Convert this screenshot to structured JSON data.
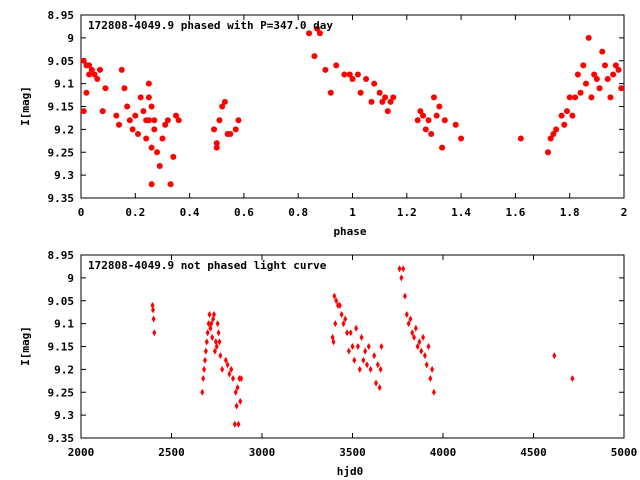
{
  "chart_data": [
    {
      "type": "scatter",
      "title": "172808-4049.9 phased with P=347.0 day",
      "xlabel": "phase",
      "ylabel": "I[mag]",
      "xlim": [
        0,
        2
      ],
      "ylim": [
        9.35,
        8.95
      ],
      "y_inverted": true,
      "xticks": [
        0,
        0.2,
        0.4,
        0.6,
        0.8,
        1,
        1.2,
        1.4,
        1.6,
        1.8,
        2
      ],
      "xtick_labels": [
        "0",
        "0.2",
        "0.4",
        "0.6",
        "0.8",
        "1",
        "1.2",
        "1.4",
        "1.6",
        "1.8",
        "2"
      ],
      "yticks": [
        8.95,
        9,
        9.05,
        9.1,
        9.15,
        9.2,
        9.25,
        9.3,
        9.35
      ],
      "ytick_labels": [
        "8.95",
        "9",
        "9.05",
        "9.1",
        "9.15",
        "9.2",
        "9.25",
        "9.3",
        "9.35"
      ],
      "grid": false,
      "series": [
        {
          "color": "#ff0000",
          "marker": "filled-circle",
          "x": [
            0.01,
            0.01,
            0.02,
            0.02,
            0.03,
            0.03,
            0.04,
            0.05,
            0.06,
            0.07,
            0.08,
            0.09,
            0.13,
            0.14,
            0.15,
            0.16,
            0.17,
            0.18,
            0.19,
            0.2,
            0.21,
            0.22,
            0.23,
            0.24,
            0.24,
            0.25,
            0.25,
            0.25,
            0.26,
            0.26,
            0.26,
            0.27,
            0.27,
            0.28,
            0.29,
            0.3,
            0.31,
            0.32,
            0.33,
            0.34,
            0.35,
            0.36,
            0.49,
            0.5,
            0.5,
            0.51,
            0.52,
            0.53,
            0.54,
            0.55,
            0.57,
            0.58,
            0.84,
            0.86,
            0.87,
            0.88,
            0.9,
            0.92,
            0.94,
            0.97,
            0.99,
            1.0,
            1.02,
            1.03,
            1.05,
            1.07,
            1.08,
            1.1,
            1.11,
            1.12,
            1.13,
            1.14,
            1.15,
            1.24,
            1.25,
            1.26,
            1.27,
            1.28,
            1.29,
            1.3,
            1.31,
            1.32,
            1.33,
            1.34,
            1.38,
            1.4,
            1.62,
            1.72,
            1.73,
            1.74,
            1.75,
            1.77,
            1.78,
            1.79,
            1.8,
            1.81,
            1.82,
            1.83,
            1.84,
            1.85,
            1.86,
            1.87,
            1.88,
            1.89,
            1.9,
            1.91,
            1.92,
            1.93,
            1.94,
            1.95,
            1.96,
            1.97,
            1.98,
            1.99
          ],
          "y": [
            9.05,
            9.16,
            9.06,
            9.12,
            9.06,
            9.08,
            9.07,
            9.08,
            9.09,
            9.07,
            9.16,
            9.11,
            9.17,
            9.19,
            9.07,
            9.11,
            9.15,
            9.18,
            9.2,
            9.17,
            9.21,
            9.13,
            9.16,
            9.18,
            9.22,
            9.1,
            9.13,
            9.18,
            9.32,
            9.15,
            9.24,
            9.18,
            9.2,
            9.25,
            9.28,
            9.22,
            9.19,
            9.18,
            9.32,
            9.26,
            9.17,
            9.18,
            9.2,
            9.23,
            9.24,
            9.18,
            9.15,
            9.14,
            9.21,
            9.21,
            9.2,
            9.18,
            8.99,
            9.04,
            8.98,
            8.99,
            9.07,
            9.12,
            9.06,
            9.08,
            9.08,
            9.09,
            9.08,
            9.12,
            9.09,
            9.14,
            9.1,
            9.12,
            9.14,
            9.13,
            9.16,
            9.14,
            9.13,
            9.18,
            9.16,
            9.17,
            9.2,
            9.18,
            9.21,
            9.13,
            9.17,
            9.15,
            9.24,
            9.18,
            9.19,
            9.22,
            9.22,
            9.25,
            9.22,
            9.21,
            9.2,
            9.17,
            9.19,
            9.16,
            9.13,
            9.17,
            9.13,
            9.08,
            9.12,
            9.06,
            9.1,
            9.0,
            9.13,
            9.08,
            9.09,
            9.11,
            9.03,
            9.06,
            9.09,
            9.13,
            9.08,
            9.06,
            9.07,
            9.11
          ]
        }
      ]
    },
    {
      "type": "scatter",
      "title": "172808-4049.9 not phased light curve",
      "xlabel": "hjd0",
      "ylabel": "I[mag]",
      "xlim": [
        2000,
        5000
      ],
      "ylim": [
        9.35,
        8.95
      ],
      "y_inverted": true,
      "xticks": [
        2000,
        2500,
        3000,
        3500,
        4000,
        4500,
        5000
      ],
      "xtick_labels": [
        "2000",
        "2500",
        "3000",
        "3500",
        "4000",
        "4500",
        "5000"
      ],
      "yticks": [
        8.95,
        9,
        9.05,
        9.1,
        9.15,
        9.2,
        9.25,
        9.3,
        9.35
      ],
      "ytick_labels": [
        "8.95",
        "9",
        "9.05",
        "9.1",
        "9.15",
        "9.2",
        "9.25",
        "9.3",
        "9.35"
      ],
      "grid": false,
      "series": [
        {
          "color": "#ff0000",
          "marker": "diamond",
          "x": [
            2395,
            2398,
            2401,
            2405,
            2670,
            2675,
            2680,
            2685,
            2690,
            2695,
            2700,
            2705,
            2710,
            2715,
            2720,
            2725,
            2730,
            2735,
            2740,
            2745,
            2750,
            2755,
            2760,
            2765,
            2770,
            2780,
            2800,
            2810,
            2820,
            2830,
            2840,
            2850,
            2855,
            2860,
            2865,
            2870,
            2875,
            2880,
            2885,
            3390,
            3395,
            3400,
            3405,
            3410,
            3420,
            3430,
            3440,
            3450,
            3460,
            3470,
            3480,
            3490,
            3500,
            3510,
            3520,
            3530,
            3540,
            3550,
            3560,
            3570,
            3580,
            3590,
            3600,
            3620,
            3630,
            3640,
            3650,
            3655,
            3660,
            3760,
            3770,
            3780,
            3790,
            3800,
            3810,
            3820,
            3830,
            3840,
            3850,
            3860,
            3870,
            3880,
            3890,
            3900,
            3910,
            3920,
            3930,
            3940,
            3950,
            4615,
            4715
          ],
          "y": [
            9.06,
            9.07,
            9.09,
            9.12,
            9.25,
            9.22,
            9.2,
            9.18,
            9.16,
            9.14,
            9.12,
            9.1,
            9.08,
            9.11,
            9.1,
            9.13,
            9.09,
            9.08,
            9.16,
            9.14,
            9.15,
            9.1,
            9.12,
            9.14,
            9.17,
            9.2,
            9.18,
            9.19,
            9.21,
            9.2,
            9.22,
            9.32,
            9.25,
            9.28,
            9.24,
            9.32,
            9.22,
            9.27,
            9.22,
            9.13,
            9.14,
            9.04,
            9.1,
            9.05,
            9.06,
            9.06,
            9.08,
            9.1,
            9.09,
            9.12,
            9.16,
            9.12,
            9.15,
            9.18,
            9.11,
            9.15,
            9.2,
            9.13,
            9.18,
            9.16,
            9.19,
            9.15,
            9.2,
            9.17,
            9.23,
            9.19,
            9.24,
            9.2,
            9.15,
            8.98,
            9.0,
            8.98,
            9.04,
            9.08,
            9.1,
            9.09,
            9.12,
            9.13,
            9.11,
            9.15,
            9.14,
            9.16,
            9.13,
            9.17,
            9.19,
            9.15,
            9.22,
            9.2,
            9.25,
            9.17,
            9.22
          ]
        }
      ]
    }
  ]
}
